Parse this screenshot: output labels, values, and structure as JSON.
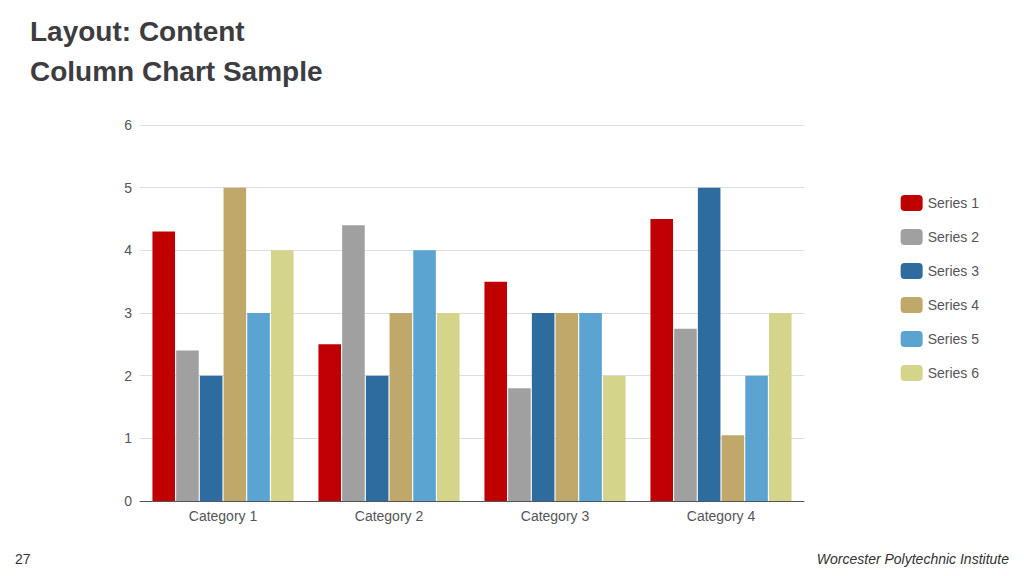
{
  "chart_data": {
    "type": "bar",
    "title": "Layout: Content",
    "subtitle": "Column Chart Sample",
    "categories": [
      "Category 1",
      "Category 2",
      "Category 3",
      "Category 4"
    ],
    "series": [
      {
        "name": "Series 1",
        "color": "#C00000",
        "values": [
          4.3,
          2.5,
          3.5,
          4.5
        ]
      },
      {
        "name": "Series 2",
        "color": "#A0A0A0",
        "values": [
          2.4,
          4.4,
          1.8,
          2.75
        ]
      },
      {
        "name": "Series 3",
        "color": "#2E6B9E",
        "values": [
          2.0,
          2.0,
          3.0,
          5.0
        ]
      },
      {
        "name": "Series 4",
        "color": "#BFA86A",
        "values": [
          5.0,
          3.0,
          3.0,
          1.05
        ]
      },
      {
        "name": "Series 5",
        "color": "#5BA3D0",
        "values": [
          3.0,
          4.0,
          3.0,
          2.0
        ]
      },
      {
        "name": "Series 6",
        "color": "#D4D48A",
        "values": [
          4.0,
          3.0,
          2.0,
          3.0
        ]
      }
    ],
    "ylim": [
      0,
      6
    ],
    "yticks": [
      0,
      1,
      2,
      3,
      4,
      5,
      6
    ],
    "grid": true,
    "legend": "right",
    "annotations": [
      "27",
      "Worcester Polytechnic Institute"
    ]
  }
}
